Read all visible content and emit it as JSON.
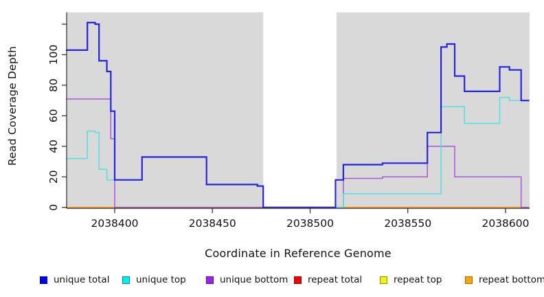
{
  "x_axis": {
    "label": "Coordinate in Reference Genome",
    "ticks": [
      {
        "value": 2038400,
        "label": "2038400"
      },
      {
        "value": 2038450,
        "label": "2038450"
      },
      {
        "value": 2038500,
        "label": "2038500"
      },
      {
        "value": 2038550,
        "label": "2038550"
      },
      {
        "value": 2038600,
        "label": "2038600"
      }
    ]
  },
  "y_axis": {
    "label": "Read Coverage Depth",
    "ticks": [
      {
        "value": 0,
        "label": "0"
      },
      {
        "value": 20,
        "label": "20"
      },
      {
        "value": 40,
        "label": "40"
      },
      {
        "value": 60,
        "label": "60"
      },
      {
        "value": 80,
        "label": "80"
      },
      {
        "value": 100,
        "label": "100"
      },
      {
        "value": 120,
        "label": ""
      }
    ]
  },
  "chart_data": {
    "type": "step-line",
    "title": "",
    "xlabel": "Coordinate in Reference Genome",
    "ylabel": "Read Coverage Depth",
    "x_range": [
      2038375,
      2038612
    ],
    "y_range": [
      0,
      127
    ],
    "grid": false,
    "panel_color": "#D9D9D9",
    "axis_color": "#2B2B2B",
    "masked_region": {
      "x_start": 2038476,
      "x_end": 2038513
    },
    "legend_position": "bottom",
    "series": [
      {
        "name": "unique total",
        "line_color": "#2323E0",
        "line_width": 2.2,
        "legend_fill": "#0000F5",
        "legend_border": "#00009E",
        "points": [
          [
            2038375,
            103
          ],
          [
            2038386,
            121
          ],
          [
            2038390,
            120
          ],
          [
            2038392,
            96
          ],
          [
            2038396,
            89
          ],
          [
            2038398,
            63
          ],
          [
            2038400,
            18
          ],
          [
            2038414,
            33
          ],
          [
            2038447,
            15
          ],
          [
            2038473,
            14
          ],
          [
            2038476,
            0
          ],
          [
            2038513,
            18
          ],
          [
            2038517,
            28
          ],
          [
            2038537,
            29
          ],
          [
            2038560,
            49
          ],
          [
            2038567,
            105
          ],
          [
            2038570,
            107
          ],
          [
            2038574,
            86
          ],
          [
            2038579,
            76
          ],
          [
            2038597,
            92
          ],
          [
            2038602,
            90
          ],
          [
            2038608,
            70
          ]
        ]
      },
      {
        "name": "unique top",
        "line_color": "#4FE2DE",
        "line_width": 1.5,
        "legend_fill": "#00F0F0",
        "legend_border": "#008F8F",
        "points": [
          [
            2038375,
            32
          ],
          [
            2038386,
            50
          ],
          [
            2038390,
            49
          ],
          [
            2038392,
            25
          ],
          [
            2038396,
            18
          ],
          [
            2038414,
            33
          ],
          [
            2038447,
            15
          ],
          [
            2038473,
            14
          ],
          [
            2038476,
            0
          ],
          [
            2038517,
            9
          ],
          [
            2038567,
            66
          ],
          [
            2038579,
            55
          ],
          [
            2038597,
            72
          ],
          [
            2038602,
            70
          ]
        ]
      },
      {
        "name": "unique bottom",
        "line_color": "#A558D2",
        "line_width": 1.5,
        "legend_fill": "#A020F0",
        "legend_border": "#5A0FA0",
        "points": [
          [
            2038375,
            71
          ],
          [
            2038398,
            45
          ],
          [
            2038400,
            0
          ],
          [
            2038517,
            19
          ],
          [
            2038537,
            20
          ],
          [
            2038560,
            40
          ],
          [
            2038574,
            20
          ],
          [
            2038608,
            0
          ]
        ]
      },
      {
        "name": "repeat total",
        "line_color": "#D23A5A",
        "line_width": 1.2,
        "legend_fill": "#F50000",
        "legend_border": "#9E0000",
        "points": [
          [
            2038375,
            0
          ]
        ]
      },
      {
        "name": "repeat top",
        "line_color": "#F0F000",
        "line_width": 1.2,
        "legend_fill": "#F5F500",
        "legend_border": "#8F8F00",
        "points": [
          [
            2038375,
            0
          ]
        ]
      },
      {
        "name": "repeat bottom",
        "line_color": "#FF9F1A",
        "line_width": 1.8,
        "legend_fill": "#FFA500",
        "legend_border": "#A06800",
        "points": [
          [
            2038375,
            0
          ]
        ]
      }
    ],
    "draw_order": [
      4,
      3,
      5,
      2,
      1,
      0
    ]
  }
}
